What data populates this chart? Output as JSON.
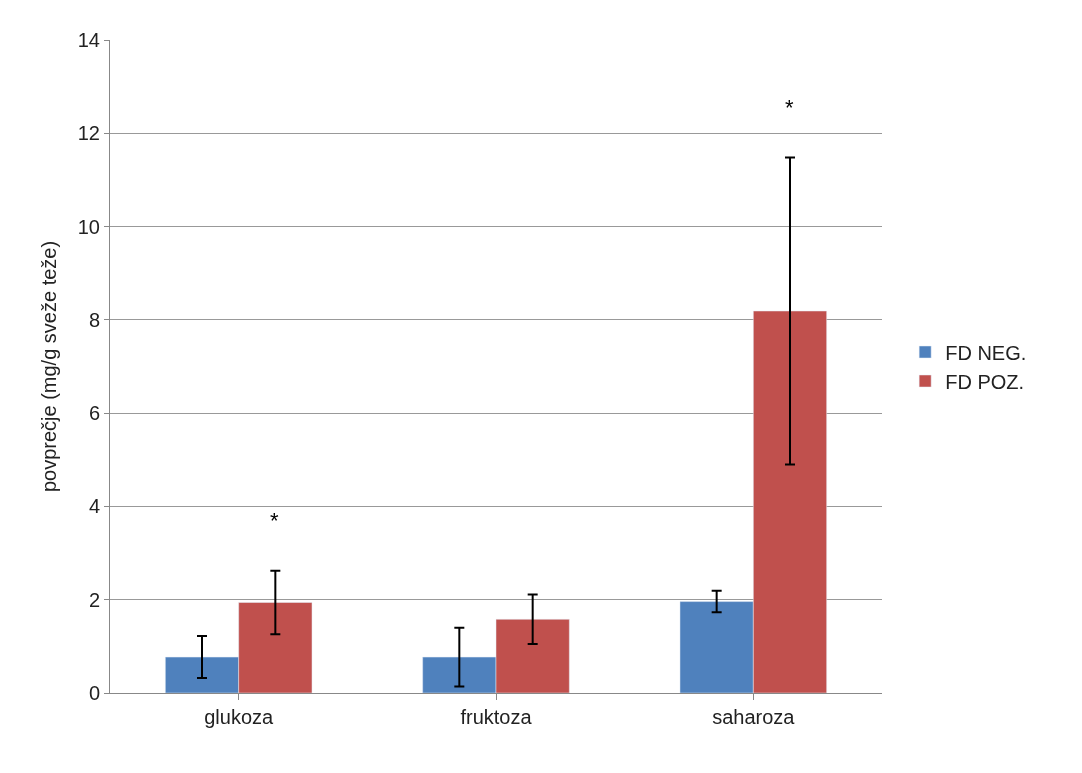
{
  "chart_data": {
    "type": "bar",
    "ylabel": "povprečje (mg/g sveže teže)",
    "categories": [
      "glukoza",
      "fruktoza",
      "saharoza"
    ],
    "series": [
      {
        "name": "FD NEG.",
        "color": "#4f81bd",
        "values": [
          0.77,
          0.77,
          1.96
        ],
        "errors": [
          0.45,
          0.63,
          0.23
        ]
      },
      {
        "name": "FD POZ.",
        "color": "#c0504d",
        "values": [
          1.94,
          1.58,
          8.19
        ],
        "errors": [
          0.68,
          0.53,
          3.29
        ]
      }
    ],
    "annotations": [
      "*",
      "*"
    ],
    "ylim": [
      0,
      14
    ],
    "yticks": [
      0,
      2,
      4,
      6,
      8,
      10,
      12,
      14
    ],
    "grid": "y",
    "legend": "right"
  }
}
